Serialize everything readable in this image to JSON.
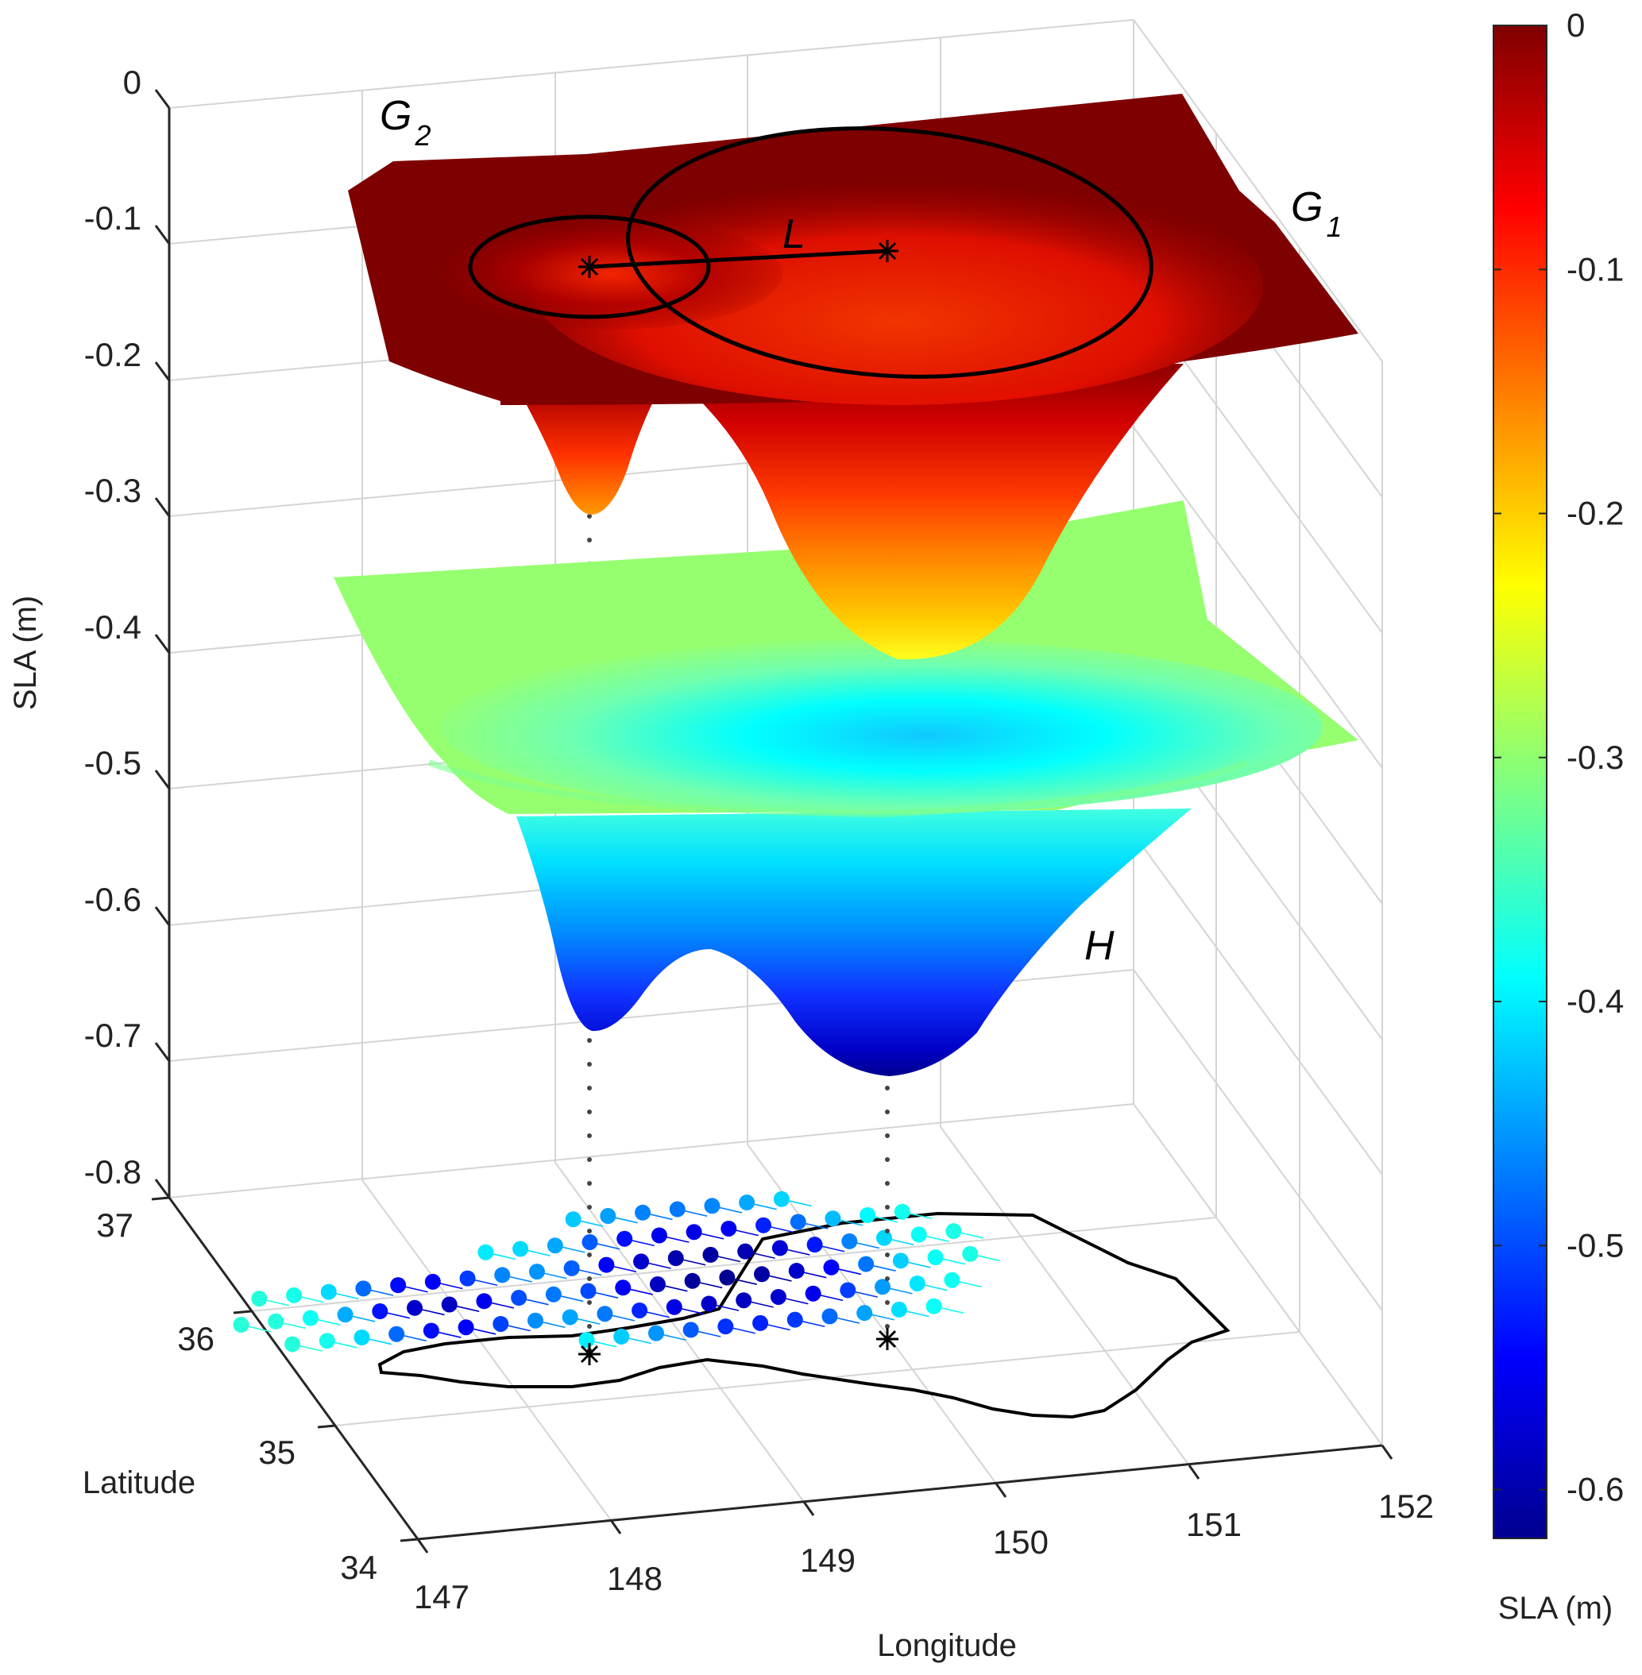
{
  "chart_data": {
    "type": "surface3d",
    "title": "",
    "xlabel": "Longitude",
    "ylabel": "Latitude",
    "zlabel": "SLA (m)",
    "colorbar_label": "SLA (m)",
    "xlim": [
      147,
      152
    ],
    "ylim": [
      34,
      37
    ],
    "zlim": [
      -0.8,
      0
    ],
    "clim": [
      -0.62,
      0
    ],
    "x_ticks": [
      "147",
      "148",
      "149",
      "150",
      "151",
      "152"
    ],
    "y_ticks": [
      "34",
      "35",
      "36",
      "37"
    ],
    "z_ticks": [
      "0",
      "-0.1",
      "-0.2",
      "-0.3",
      "-0.4",
      "-0.5",
      "-0.6",
      "-0.7",
      "-0.8"
    ],
    "colorbar_ticks": [
      "0",
      "-0.1",
      "-0.2",
      "-0.3",
      "-0.4",
      "-0.5",
      "-0.6"
    ],
    "colormap": [
      "#00008f",
      "#0000ff",
      "#00ffff",
      "#80ff80",
      "#ffff00",
      "#ff0000",
      "#800000"
    ],
    "surfaces": [
      {
        "name": "G",
        "baseline": -0.07,
        "components": [
          {
            "label": "G1",
            "center_lon": 149.4,
            "center_lat": 35.95,
            "depth": -0.31
          },
          {
            "label": "G2",
            "center_lon": 147.9,
            "center_lat": 35.9,
            "depth": -0.2
          }
        ]
      },
      {
        "name": "H",
        "baseline": -0.38,
        "minima": [
          {
            "center_lon": 149.4,
            "center_lat": 35.95,
            "value": -0.62
          },
          {
            "center_lon": 147.9,
            "center_lat": 35.9,
            "value": -0.57
          }
        ]
      }
    ],
    "centers": [
      {
        "label": "G2",
        "lon": 147.9,
        "lat": 35.9
      },
      {
        "label": "G1",
        "lon": 149.4,
        "lat": 35.95
      }
    ],
    "annotations": {
      "G2": {
        "main": "G",
        "sub": "2"
      },
      "G1": {
        "main": "G",
        "sub": "1"
      },
      "L": {
        "main": "L"
      },
      "H": {
        "main": "H"
      }
    }
  }
}
